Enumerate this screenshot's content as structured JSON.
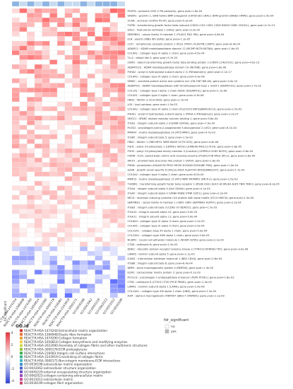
{
  "legend_header": "GO.id",
  "fdr_legend": {
    "title": "fdr_significant",
    "labels": [
      "no",
      "yes"
    ],
    "colors": [
      "#ffffff",
      "#bdbdbd"
    ]
  },
  "color_scale": {
    "ticks": [
      "4",
      "2",
      "0",
      "-2",
      "-4"
    ],
    "high": "#e8313a",
    "mid": "#ffffff",
    "low": "#2b3fd4"
  },
  "go_colors": [
    "#c9392f",
    "#e8723a",
    "#e9a23b",
    "#f2cf45",
    "#cfd84a",
    "#8cc63f",
    "#3fae4a",
    "#39b38a",
    "#3fb8c4",
    "#3c8fcf",
    "#4a63c9",
    "#6c4fc0",
    "#a04bbf",
    "#c9479e",
    "#c8456a"
  ],
  "chart_data": {
    "type": "heatmap",
    "fdr_row_label": "fdr_significant",
    "columns": [
      "REACT:R-HSA-1474244",
      "REACT:R-HSA-1566948",
      "REACT:R-HSA-1474290",
      "REACT:R-HSA-1650814",
      "REACT:R-HSA-2022090",
      "REACT:R-HSA-3000178",
      "REACT:R-HSA-216083",
      "REACT:R-HSA-2243919",
      "REACT:R-HSA-3000171",
      "GO:0030198",
      "GO:0043062",
      "GO:0045229",
      "GO:0062023",
      "GO:0031012",
      "GO:0030199"
    ],
    "fdr_significant": [
      "yes",
      "no",
      "yes",
      "no",
      "yes",
      "no",
      "yes",
      "no",
      "no",
      "yes",
      "no",
      "yes",
      "yes",
      "yes",
      "no"
    ],
    "go_legend": [
      "REACT:R-HSA-1474244:Extracellular matrix organization",
      "REACT:R-HSA-1566948:Elastic fibre formation",
      "REACT:R-HSA-1474290:Collagen formation",
      "REACT:R-HSA-1650814:Collagen biosynthesis and modifying enzymes",
      "REACT:R-HSA-2022090:Assembly of collagen fibrils and other multimeric structures",
      "REACT:R-HSA-3000178:ECM proteoglycans",
      "REACT:R-HSA-216083:Integrin cell surface interactions",
      "REACT:R-HSA-2243919:Crosslinking of collagen fibrils",
      "REACT:R-HSA-3000171:Non-integrin membrane-ECM interactions",
      "GO:0030198:extracellular matrix organization",
      "GO:0043062:extracellular structure organization",
      "GO:0045229:external encapsulating structure organization",
      "GO:0062023:collagen-containing extracellular matrix",
      "GO:0031012:extracellular matrix",
      "GO:0030199:collagen fibril organization"
    ],
    "rows": [
      "POSTN : periostin (OSF-2 PN periostin); gene pval=1.8e-04",
      "GREM1 : gremlin 1, DAN family BMP antagonist (CKTSF1B1 CRAC1 DRM gremlin DAND2 HMPS); gene pval=1.4e-04",
      "VCAN : versican (CSPG2 PG-M); gene pval=5.3e-04",
      "TGFBI : transforming growth factor beta-induced (CSD3 LCD1 CSD1 CSD2 BIGH3 CDB1 CDGG1); gene pval=4.7e-13",
      "HAS1 : hyaluronan synthase 1 (HAS); gene pval=3.2e-03",
      "SERPINH1 : serpin family H member 1 (PLA2I1 PAI1 PAI); gene pval=4.6e-04",
      "ELN : elastin (WBS WS SVAS); gene pval=1.1e-05",
      "LCP1 : lymphocyte cytosolic protein 1 (PLS2 CP64 L-PLASTIN LC64P); gene pval=8.4e-04",
      "ADAM12 : ADAM metallopeptidase domain 12 (MCMP MLTN MLTNA); gene pval=1.6e-03",
      "COL4A1 : collagen type IV alpha 1 chain; gene pval=4.5e-04",
      "TLL2 : tolloid like 2; gene pval=9.7e-03",
      "LTBP2 : latent transforming growth factor beta binding protein 2 (LTBP3 C14orf141); gene pval=4.5e-13",
      "ADAMTS10 : ADAM metallopeptidase domain 10 (WLTNB); gene pval=1.8e-06",
      "P4HA2 : prolyl 4-hydroxylase subunit alpha 2 (C-P4Halpha(II)); gene pval=2.1e-17",
      "COL4A2 : collagen type IV alpha 2 chain; gene pval=4.3e-08",
      "SPARC : secreted protein acidic and cysteine rich (ON ONT BM-40); gene pval=3.4e-10",
      "ADAMTS2 : ADAM metallopeptidase with thrombospondin type 1 motif 2 (ADAM-TS2); gene pval=1.7e-03",
      "COL1A1 : collagen type I alpha 1 chain (EDSC EDSARTH1); gene pval=1.1e-06",
      "COL5A1 : collagen type V alpha 1 chain; gene pval=4.3e-06",
      "FBN3 : fibrillin 3 (CCA DA9); gene pval=1.7e-04",
      "LOX : lysyl oxidase; gene pval=1.5e-03",
      "COL4A2 : collagen type IV alpha 2 chain (FLJ22259 DKFZp686I14213); gene pval=1.5e-02",
      "P4HA1 : prolyl 4-hydroxylase subunit alpha 1 (P4HA C-P4Halpha(I)); gene pval=1.2e-07",
      "SMOC1 : SPARC related modular calcium binding 1; gene pval=5.6e-04",
      "ITGA2 : integrin subunit alpha 2 (CD49B CD49b); gene pval=7.0e-04",
      "PLOD2 : procollagen-lysine,2-oxoglutarate 5-dioxygenase 2 (LH2); gene pval=8.1e-04",
      "MMP24 : matrix metallopeptidase 24 (MT5-MMP); gene pval=4.7e-03",
      "ITGB5 : integrin subunit beta 5; gene pval=1.5e-03",
      "FBN1 : fibrillin 1 (FBN MFS1 WMS MASS OCTD SGS); gene pval=4.4e-06",
      "P3H1 : prolyl 3-hydroxylase 1 (LEPRE1 GROS1 LEPREAN MGC117314); gene pval=2.8e-05",
      "P3H3 : prolyl 3-hydroxylase family member 4 (inactive) (LEPREL4 SC65 NO55); gene pval=3.8e-04",
      "FURIN : furin, paired basic amino acid cleaving enzyme (PCSK3 FUR PACE SPC1); gene pval=2.6e-04",
      "APLP1 : amyloid beta precursor like protein 1 (APLP); gene pval=1.6e-03",
      "PXDN : peroxidasin (KIAA0230 PRG2 MG50 D2S448 D2S448E PXN); gene pval=1.0e-04",
      "GAS6 : growth arrest specific 6 (AXLLG AXSF FLJ34709 DKFZp666G247); gene pval=1.7e-03",
      "COL5A2 : collagen type V alpha 2 chain; gene pval=8.5e-04",
      "MMP15 : matrix metallopeptidase 15 (MT2-MMP MTMMP2 SMCP-2); gene pval=1.5e-03",
      "TGFBR1 : transforming growth factor beta receptor 1 (MSSE ESS1 ALK-5 ACVRLK4 ALK5 TBRI TBR-I); gene pval=6.3e-05",
      "ITGA4 : integrin subunit alpha 4 (IA4 CD49d); gene pval=4.1e-03",
      "ITGAV : integrin subunit alpha V (VNRA MSK8 VTNR CD51); gene pval=2.2e-04",
      "RECK : reversion inducing cysteine rich protein with kazal motifs (ST15 hRECK); gene pval=1.5e-04",
      "SERPINH1 : serpin family H member 1 (CBP1 CBP2 SERPINH2 HSP47); gene pval=2.2e-04",
      "ITGB3 : integrin subunit beta 3 (CD61 GT BDPLT2); gene pval=1.7e-03",
      "ITGA10 : integrin subunit alpha 10; gene pval=3.9e-03",
      "ITGA11 : integrin subunit alpha 11; gene pval=5.0e-04",
      "COL6A3 : collagen type VI alpha 3 chain; gene pval=1.2e-03",
      "COL4A5 : collagen type IV alpha 5 chain; gene pval=2.0e-04",
      "COL15A1 : collagen type XV alpha 1 chain; gene pval=5.3e-04",
      "COL23A1 : collagen type XXIII alpha 1 chain; gene pval=2.6e-03",
      "NCAM1 : neural cell adhesion molecule 1 (NCAM CD56); gene pval=2.1e-04",
      "CTSB : cathepsin B; gene pval=1.5e-03",
      "DDR2 : discoidin domain receptor tyrosine kinase 2 (TYRO10 NTRKR3 TKT); gene pval=3.0e-06",
      "LAMA5 : laminin subunit alpha 5; gene pval=1.1e-03",
      "ICAM1 : intercellular adhesion molecule 1 (BB2 CD54); gene pval=2.6e-04",
      "ITGB8 : integrin subunit beta 8; gene pval=6.4e-04",
      "BMP4 : bone morphogenetic protein 4 (BMP2B); gene pval=1.3e-04",
      "ECM2 : extracellular matrix protein 2; gene pval=5.1e-03",
      "PCOLCE : procollagen C-endopeptidase enhancer (PCPE PCPE1); gene pval=1.6e-03",
      "CTSK : cathepsin K (CTSO2 CTSO PYCD PKND); gene pval=1.3e-05",
      "LAMA1 : laminin subunit alpha 1 (LAMA); gene pval=1.4e-06",
      "COL14A1 : collagen type XIV alpha 1 chain (UND); gene pval=1.3e-05",
      "A2M : alpha-2-macroglobulin (FWP007 S863-7 CPAMD5); gene pval=1.1e-09"
    ]
  }
}
